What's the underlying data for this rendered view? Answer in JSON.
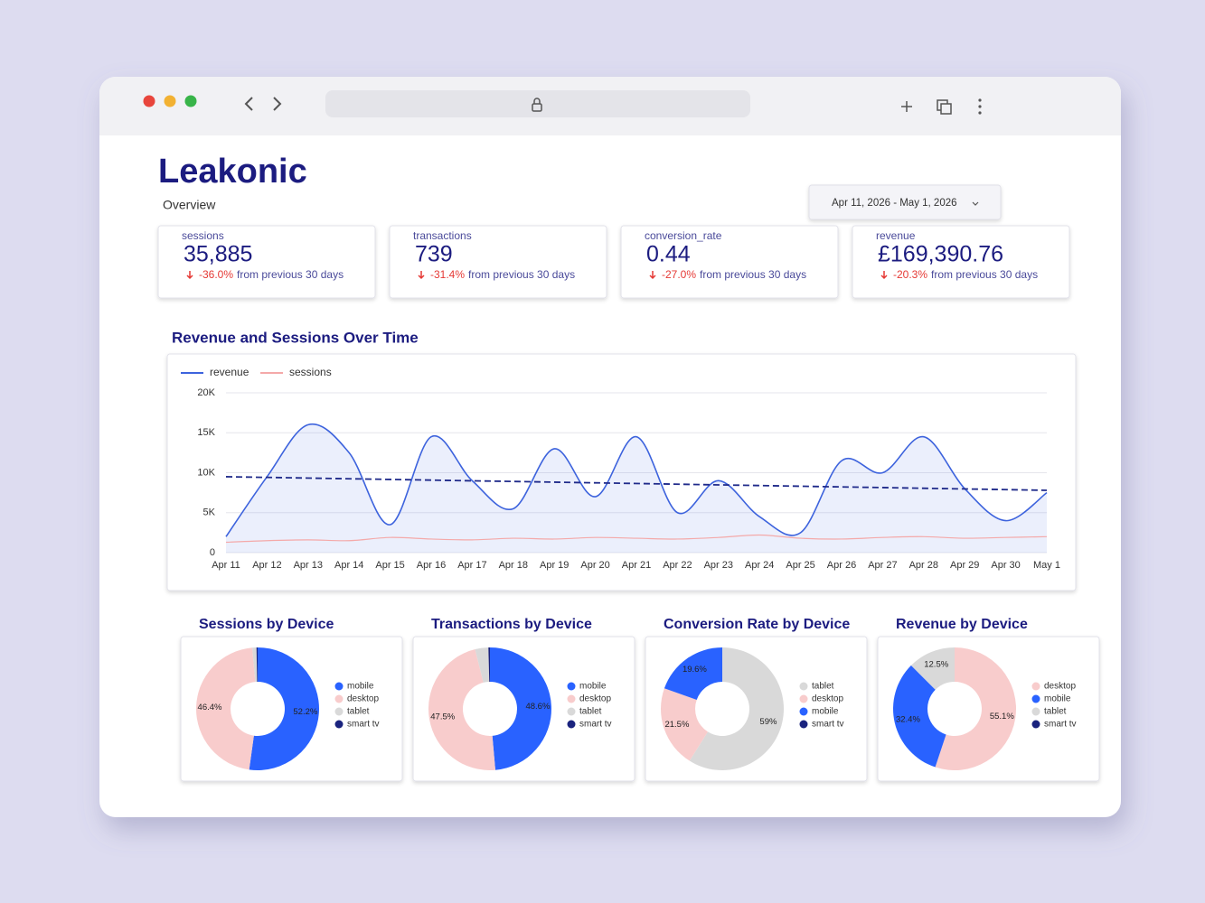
{
  "header": {
    "brand": "Leakonic",
    "subtitle": "Overview",
    "date_range": "Apr 11, 2026 - May 1, 2026"
  },
  "kpis": [
    {
      "label": "sessions",
      "value": "35,885",
      "change": "-36.0%",
      "comparison": "from previous 30 days"
    },
    {
      "label": "transactions",
      "value": "739",
      "change": "-31.4%",
      "comparison": "from previous 30 days"
    },
    {
      "label": "conversion_rate",
      "value": "0.44",
      "change": "-27.0%",
      "comparison": "from previous 30 days"
    },
    {
      "label": "revenue",
      "value": "£169,390.76",
      "change": "-20.3%",
      "comparison": "from previous 30 days"
    }
  ],
  "chart_data": [
    {
      "type": "line",
      "title": "Revenue and Sessions Over Time",
      "categories": [
        "Apr 11",
        "Apr 12",
        "Apr 13",
        "Apr 14",
        "Apr 15",
        "Apr 16",
        "Apr 17",
        "Apr 18",
        "Apr 19",
        "Apr 20",
        "Apr 21",
        "Apr 22",
        "Apr 23",
        "Apr 24",
        "Apr 25",
        "Apr 26",
        "Apr 27",
        "Apr 28",
        "Apr 29",
        "Apr 30",
        "May 1"
      ],
      "series": [
        {
          "name": "revenue",
          "color": "#3d63dd",
          "values": [
            2000,
            9500,
            16000,
            12500,
            3500,
            14500,
            9000,
            5500,
            13000,
            7000,
            14500,
            5000,
            9000,
            4500,
            2500,
            11500,
            10000,
            14500,
            8000,
            4000,
            7500
          ]
        },
        {
          "name": "sessions",
          "color": "#f4a9a9",
          "values": [
            1300,
            1500,
            1600,
            1500,
            1900,
            1700,
            1600,
            1800,
            1700,
            1900,
            1800,
            1700,
            1900,
            2200,
            1800,
            1700,
            1900,
            2000,
            1800,
            1900,
            2000
          ]
        }
      ],
      "trend_line": {
        "color": "#1f2a8a",
        "values": [
          9500,
          7800
        ]
      },
      "ylim": [
        0,
        20000
      ],
      "yticks": [
        0,
        {
          "value": 5000,
          "label": "5K"
        },
        {
          "value": 10000,
          "label": "10K"
        },
        {
          "value": 15000,
          "label": "15K"
        },
        {
          "value": 20000,
          "label": "20K"
        }
      ],
      "grid": true,
      "legend": "top-left"
    },
    {
      "type": "donut",
      "title": "Sessions by Device",
      "categories": [
        "mobile",
        "desktop",
        "tablet",
        "smart tv"
      ],
      "values": [
        52.2,
        46.4,
        1.1,
        0.3
      ],
      "value_labels": [
        "52.2%",
        "46.4%",
        null,
        null
      ],
      "colors": [
        "#2962ff",
        "#f8cccc",
        "#d9d9d9",
        "#1a237e"
      ]
    },
    {
      "type": "donut",
      "title": "Transactions by Device",
      "categories": [
        "mobile",
        "desktop",
        "tablet",
        "smart tv"
      ],
      "values": [
        48.6,
        47.5,
        3.5,
        0.4
      ],
      "value_labels": [
        "48.6%",
        "47.5%",
        null,
        null
      ],
      "colors": [
        "#2962ff",
        "#f8cccc",
        "#d9d9d9",
        "#1a237e"
      ]
    },
    {
      "type": "donut",
      "title": "Conversion Rate by Device",
      "categories": [
        "tablet",
        "desktop",
        "mobile",
        "smart tv"
      ],
      "values": [
        59,
        21.5,
        19.6,
        0
      ],
      "value_labels": [
        "59%",
        "21.5%",
        "19.6%",
        null
      ],
      "colors": [
        "#d9d9d9",
        "#f8cccc",
        "#2962ff",
        "#1a237e"
      ]
    },
    {
      "type": "donut",
      "title": "Revenue by Device",
      "categories": [
        "desktop",
        "mobile",
        "tablet",
        "smart tv"
      ],
      "values": [
        55.1,
        32.4,
        12.5,
        0
      ],
      "value_labels": [
        "55.1%",
        "32.4%",
        "12.5%",
        null
      ],
      "colors": [
        "#f8cccc",
        "#2962ff",
        "#d9d9d9",
        "#1a237e"
      ]
    }
  ]
}
